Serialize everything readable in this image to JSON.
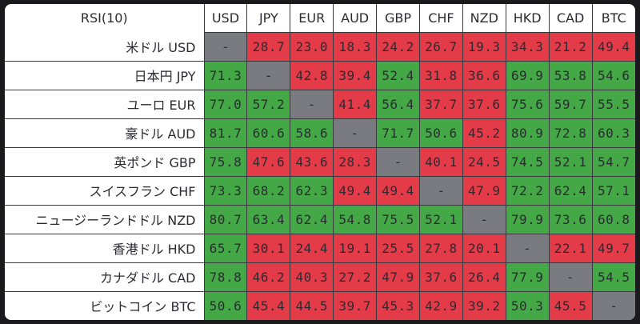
{
  "table": {
    "corner_label": "RSI(10)",
    "columns": [
      "USD",
      "JPY",
      "EUR",
      "AUD",
      "GBP",
      "CHF",
      "NZD",
      "HKD",
      "CAD",
      "BTC"
    ],
    "rows": [
      {
        "label": "米ドル USD",
        "values": [
          "-",
          "28.7",
          "23.0",
          "18.3",
          "24.2",
          "26.7",
          "19.3",
          "34.3",
          "21.2",
          "49.4"
        ]
      },
      {
        "label": "日本円 JPY",
        "values": [
          "71.3",
          "-",
          "42.8",
          "39.4",
          "52.4",
          "31.8",
          "36.6",
          "69.9",
          "53.8",
          "54.6"
        ]
      },
      {
        "label": "ユーロ EUR",
        "values": [
          "77.0",
          "57.2",
          "-",
          "41.4",
          "56.4",
          "37.7",
          "37.6",
          "75.6",
          "59.7",
          "55.5"
        ]
      },
      {
        "label": "豪ドル AUD",
        "values": [
          "81.7",
          "60.6",
          "58.6",
          "-",
          "71.7",
          "50.6",
          "45.2",
          "80.9",
          "72.8",
          "60.3"
        ]
      },
      {
        "label": "英ポンド GBP",
        "values": [
          "75.8",
          "47.6",
          "43.6",
          "28.3",
          "-",
          "40.1",
          "24.5",
          "74.5",
          "52.1",
          "54.7"
        ]
      },
      {
        "label": "スイスフラン CHF",
        "values": [
          "73.3",
          "68.2",
          "62.3",
          "49.4",
          "49.4",
          "-",
          "47.9",
          "72.2",
          "62.4",
          "57.1"
        ]
      },
      {
        "label": "ニュージーランドドル NZD",
        "values": [
          "80.7",
          "63.4",
          "62.4",
          "54.8",
          "75.5",
          "52.1",
          "-",
          "79.9",
          "73.6",
          "60.8"
        ]
      },
      {
        "label": "香港ドル HKD",
        "values": [
          "65.7",
          "30.1",
          "24.4",
          "19.1",
          "25.5",
          "27.8",
          "20.1",
          "-",
          "22.1",
          "49.7"
        ]
      },
      {
        "label": "カナダドル CAD",
        "values": [
          "78.8",
          "46.2",
          "40.3",
          "27.2",
          "47.9",
          "37.6",
          "26.4",
          "77.9",
          "-",
          "54.5"
        ]
      },
      {
        "label": "ビットコイン BTC",
        "values": [
          "50.6",
          "45.4",
          "44.5",
          "39.7",
          "45.3",
          "42.9",
          "39.2",
          "50.3",
          "45.5",
          "-"
        ]
      }
    ]
  },
  "colors": {
    "above_50": "#44a846",
    "below_50": "#e33b48",
    "diagonal": "#7a7b80"
  },
  "chart_data": {
    "type": "heatmap",
    "title": "RSI(10)",
    "xlabel": "",
    "ylabel": "",
    "x": [
      "USD",
      "JPY",
      "EUR",
      "AUD",
      "GBP",
      "CHF",
      "NZD",
      "HKD",
      "CAD",
      "BTC"
    ],
    "y": [
      "米ドル USD",
      "日本円 JPY",
      "ユーロ EUR",
      "豪ドル AUD",
      "英ポンド GBP",
      "スイスフラン CHF",
      "ニュージーランドドル NZD",
      "香港ドル HKD",
      "カナダドル CAD",
      "ビットコイン BTC"
    ],
    "values": [
      [
        null,
        28.7,
        23.0,
        18.3,
        24.2,
        26.7,
        19.3,
        34.3,
        21.2,
        49.4
      ],
      [
        71.3,
        null,
        42.8,
        39.4,
        52.4,
        31.8,
        36.6,
        69.9,
        53.8,
        54.6
      ],
      [
        77.0,
        57.2,
        null,
        41.4,
        56.4,
        37.7,
        37.6,
        75.6,
        59.7,
        55.5
      ],
      [
        81.7,
        60.6,
        58.6,
        null,
        71.7,
        50.6,
        45.2,
        80.9,
        72.8,
        60.3
      ],
      [
        75.8,
        47.6,
        43.6,
        28.3,
        null,
        40.1,
        24.5,
        74.5,
        52.1,
        54.7
      ],
      [
        73.3,
        68.2,
        62.3,
        49.4,
        49.4,
        null,
        47.9,
        72.2,
        62.4,
        57.1
      ],
      [
        80.7,
        63.4,
        62.4,
        54.8,
        75.5,
        52.1,
        null,
        79.9,
        73.6,
        60.8
      ],
      [
        65.7,
        30.1,
        24.4,
        19.1,
        25.5,
        27.8,
        20.1,
        null,
        22.1,
        49.7
      ],
      [
        78.8,
        46.2,
        40.3,
        27.2,
        47.9,
        37.6,
        26.4,
        77.9,
        null,
        54.5
      ],
      [
        50.6,
        45.4,
        44.5,
        39.7,
        45.3,
        42.9,
        39.2,
        50.3,
        45.5,
        null
      ]
    ],
    "color_rule": {
      "threshold": 50,
      "above": "#44a846",
      "below": "#e33b48",
      "diagonal": "#7a7b80"
    },
    "grid": true,
    "legend": "none"
  }
}
